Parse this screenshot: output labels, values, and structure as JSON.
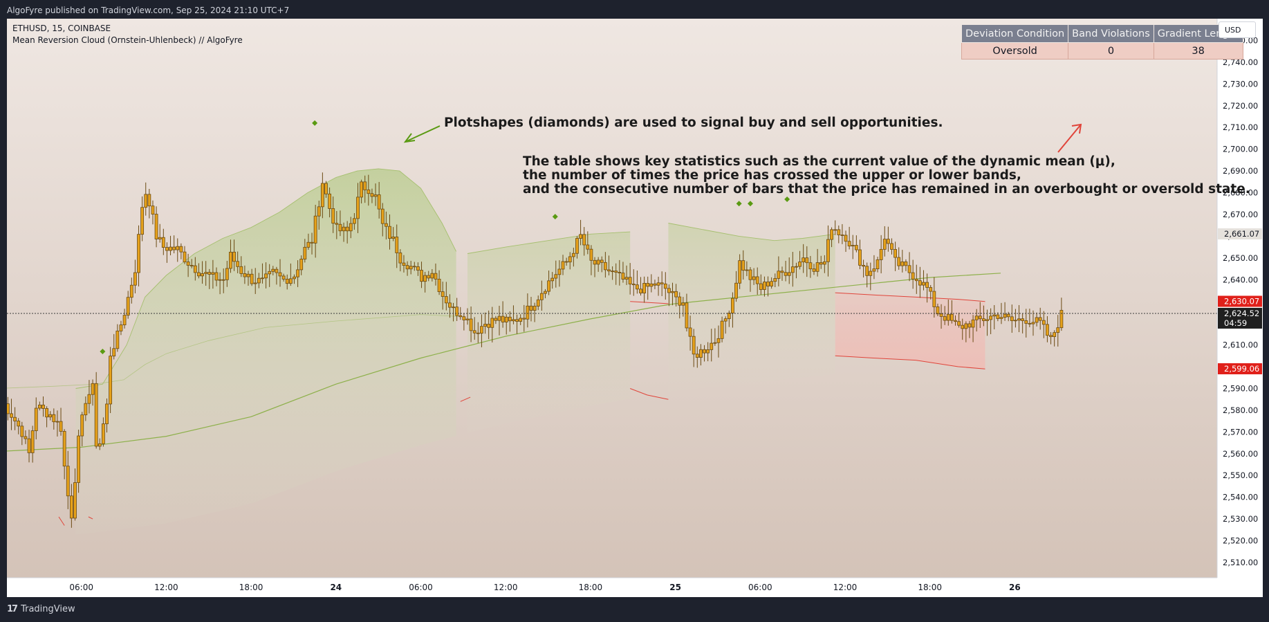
{
  "topbar": {
    "text": "AlgoFyre published on TradingView.com, Sep 25, 2024 21:10 UTC+7"
  },
  "legend": {
    "symbol": "ETHUSD, 15, COINBASE",
    "indicator": "Mean Reversion Cloud (Ornstein-Uhlenbeck) // AlgoFyre"
  },
  "stats_table": {
    "headers": [
      "Deviation Condition",
      "Band Violations",
      "Gradient Length"
    ],
    "values": [
      "Oversold",
      "0",
      "38"
    ]
  },
  "annotations": {
    "plotshapes": "Plotshapes (diamonds) are used to signal buy and sell opportunities.",
    "table_lines": [
      "The table shows key statistics such as the current value of the dynamic mean (μ),",
      "the number of times the price has crossed the upper or lower bands,",
      "and the consecutive number of bars that the price has remained in an overbought or oversold state."
    ]
  },
  "currency_button": "USD",
  "bottombar": {
    "logo": "17",
    "brand": "TradingView"
  },
  "colors": {
    "background_top": "#efe7e2",
    "background_bottom": "#d6c6bc",
    "candle_body": "#e5a11b",
    "candle_outline": "#6b4a12",
    "mean_line": "#8db04a",
    "cloud_green": "#b6c98a",
    "cloud_red": "#f0b8b0",
    "band_red": "#e0443a",
    "signal_diamond": "#5a9a12",
    "axis_bg": "#ffffff"
  },
  "price_labels": {
    "upper_band": "2,661.07",
    "upper_red": "2,630.07",
    "last_price": "2,624.52",
    "countdown": "04:59",
    "lower_red": "2,599.06"
  },
  "chart_data": {
    "type": "candlestick",
    "title": "",
    "ylim": [
      2503,
      2760
    ],
    "y_ticks": [
      2510,
      2520,
      2530,
      2540,
      2550,
      2560,
      2570,
      2580,
      2590,
      2600,
      2610,
      2620,
      2630,
      2640,
      2650,
      2660,
      2670,
      2680,
      2690,
      2700,
      2710,
      2720,
      2730,
      2740,
      2750
    ],
    "y_tick_labels": [
      "2,510.00",
      "2,520.00",
      "2,530.00",
      "2,540.00",
      "2,550.00",
      "2,560.00",
      "2,570.00",
      "2,580.00",
      "2,590.00",
      "2,600.00",
      "2,610.00",
      "2,620.00",
      "2,630.00",
      "2,640.00",
      "2,650.00",
      "2,660.00",
      "2,670.00",
      "2,680.00",
      "2,690.00",
      "2,700.00",
      "2,710.00",
      "2,720.00",
      "2,730.00",
      "2,740.00",
      "2,750.00"
    ],
    "x_range_hours": [
      0,
      60.25
    ],
    "x_ticks": [
      {
        "t": 6,
        "label": "06:00",
        "bold": false
      },
      {
        "t": 12,
        "label": "12:00",
        "bold": false
      },
      {
        "t": 18,
        "label": "18:00",
        "bold": false
      },
      {
        "t": 24,
        "label": "24",
        "bold": true
      },
      {
        "t": 30,
        "label": "06:00",
        "bold": false
      },
      {
        "t": 36,
        "label": "12:00",
        "bold": false
      },
      {
        "t": 42,
        "label": "18:00",
        "bold": false
      },
      {
        "t": 48,
        "label": "25",
        "bold": true
      },
      {
        "t": 54,
        "label": "06:00",
        "bold": false
      },
      {
        "t": 60,
        "label": "12:00",
        "bold": false
      },
      {
        "t": 66,
        "label": "18:00",
        "bold": false
      },
      {
        "t": 72,
        "label": "26",
        "bold": true
      }
    ],
    "x_anchor": {
      "first_bar_hour": 0.3,
      "bar_minutes": 15
    },
    "close_path": [
      [
        0,
        2585
      ],
      [
        3,
        2578
      ],
      [
        6,
        2570
      ],
      [
        8,
        2560
      ],
      [
        10,
        2582
      ],
      [
        14,
        2578
      ],
      [
        17,
        2572
      ],
      [
        18.5,
        2545
      ],
      [
        20,
        2532
      ],
      [
        22,
        2566
      ],
      [
        24,
        2585
      ],
      [
        26,
        2590
      ],
      [
        27,
        2565
      ],
      [
        28,
        2565
      ],
      [
        30,
        2582
      ],
      [
        31,
        2606
      ],
      [
        33,
        2614
      ],
      [
        35,
        2625
      ],
      [
        38,
        2645
      ],
      [
        40,
        2674
      ],
      [
        41,
        2680
      ],
      [
        42,
        2676
      ],
      [
        44,
        2660
      ],
      [
        46,
        2655
      ],
      [
        50,
        2654
      ],
      [
        53,
        2648
      ],
      [
        56,
        2644
      ],
      [
        60,
        2641
      ],
      [
        63,
        2640
      ],
      [
        65,
        2651
      ],
      [
        68,
        2644
      ],
      [
        71,
        2640
      ],
      [
        74,
        2639
      ],
      [
        77,
        2643
      ],
      [
        80,
        2640
      ],
      [
        83,
        2642
      ],
      [
        86,
        2654
      ],
      [
        88,
        2658
      ],
      [
        90,
        2676
      ],
      [
        91,
        2685
      ],
      [
        93,
        2673
      ],
      [
        95,
        2663
      ],
      [
        98,
        2662
      ],
      [
        100,
        2670
      ],
      [
        102,
        2683
      ],
      [
        104,
        2682
      ],
      [
        106,
        2678
      ],
      [
        108,
        2665
      ],
      [
        111,
        2658
      ],
      [
        113,
        2650
      ],
      [
        116,
        2646
      ],
      [
        119,
        2641
      ],
      [
        122,
        2644
      ],
      [
        125,
        2633
      ],
      [
        128,
        2626
      ],
      [
        131,
        2624
      ],
      [
        134,
        2616
      ],
      [
        137,
        2620
      ],
      [
        141,
        2622
      ],
      [
        144,
        2620
      ],
      [
        148,
        2624
      ],
      [
        151,
        2630
      ],
      [
        154,
        2637
      ],
      [
        157,
        2643
      ],
      [
        160,
        2648
      ],
      [
        162,
        2654
      ],
      [
        164,
        2660
      ],
      [
        167,
        2648
      ],
      [
        170,
        2646
      ],
      [
        173,
        2643
      ],
      [
        176,
        2640
      ],
      [
        179,
        2636
      ],
      [
        182,
        2636
      ],
      [
        185,
        2638
      ],
      [
        188,
        2636
      ],
      [
        191,
        2631
      ],
      [
        193,
        2630
      ],
      [
        194,
        2618
      ],
      [
        196,
        2605
      ],
      [
        199,
        2608
      ],
      [
        202,
        2612
      ],
      [
        205,
        2622
      ],
      [
        207,
        2632
      ],
      [
        209,
        2648
      ],
      [
        212,
        2641
      ],
      [
        215,
        2636
      ],
      [
        218,
        2640
      ],
      [
        221,
        2643
      ],
      [
        224,
        2646
      ],
      [
        227,
        2650
      ],
      [
        230,
        2646
      ],
      [
        233,
        2648
      ],
      [
        235,
        2665
      ],
      [
        237,
        2662
      ],
      [
        239,
        2660
      ],
      [
        242,
        2652
      ],
      [
        245,
        2643
      ],
      [
        248,
        2648
      ],
      [
        250,
        2660
      ],
      [
        253,
        2648
      ],
      [
        256,
        2645
      ],
      [
        259,
        2641
      ],
      [
        262,
        2636
      ],
      [
        265,
        2625
      ],
      [
        268,
        2622
      ],
      [
        271,
        2618
      ],
      [
        274,
        2620
      ],
      [
        278,
        2622
      ],
      [
        282,
        2624
      ],
      [
        286,
        2621
      ],
      [
        290,
        2622
      ],
      [
        294,
        2620
      ],
      [
        297,
        2612
      ],
      [
        300,
        2624
      ]
    ],
    "series": [
      {
        "name": "",
        "kind": "mean",
        "points": [
          [
            0,
            2561
          ],
          [
            6,
            2563
          ],
          [
            12,
            2568
          ],
          [
            18,
            2577
          ],
          [
            24,
            2592
          ],
          [
            30,
            2604
          ],
          [
            36,
            2614
          ],
          [
            42,
            2622
          ],
          [
            47,
            2628
          ],
          [
            48,
            2629
          ],
          [
            54,
            2633
          ],
          [
            60,
            2637
          ],
          [
            66,
            2641
          ],
          [
            71,
            2643
          ]
        ]
      },
      {
        "name": "",
        "kind": "upper",
        "points": [
          [
            5.6,
            2590
          ],
          [
            7.5,
            2592
          ],
          [
            9.2,
            2610
          ],
          [
            10.5,
            2632
          ],
          [
            12,
            2642
          ],
          [
            14,
            2652
          ],
          [
            16,
            2659
          ],
          [
            18,
            2664
          ],
          [
            20,
            2671
          ],
          [
            22,
            2680
          ],
          [
            24,
            2687
          ],
          [
            25.5,
            2690
          ],
          [
            27,
            2691
          ],
          [
            28.5,
            2690
          ],
          [
            30,
            2682
          ],
          [
            31.5,
            2666
          ],
          [
            32.5,
            2653
          ]
        ]
      },
      {
        "name": "",
        "kind": "upper",
        "points": [
          [
            33.3,
            2652
          ],
          [
            36,
            2655
          ],
          [
            39,
            2658
          ],
          [
            42,
            2661
          ],
          [
            44.8,
            2662
          ]
        ]
      },
      {
        "name": "",
        "kind": "upper",
        "points": [
          [
            47.5,
            2666
          ],
          [
            50,
            2663
          ],
          [
            52.5,
            2660
          ],
          [
            55,
            2658
          ],
          [
            57,
            2659
          ],
          [
            59.3,
            2661
          ]
        ]
      },
      {
        "name": "",
        "kind": "red_upper",
        "points": [
          [
            44.8,
            2630
          ],
          [
            47.5,
            2629
          ]
        ]
      },
      {
        "name": "",
        "kind": "red_upper",
        "points": [
          [
            59.3,
            2634
          ],
          [
            62,
            2633
          ],
          [
            65,
            2632
          ],
          [
            68,
            2631
          ],
          [
            69.9,
            2630
          ]
        ]
      },
      {
        "name": "",
        "kind": "red_lower",
        "points": [
          [
            59.3,
            2605
          ],
          [
            62,
            2604
          ],
          [
            65,
            2603
          ],
          [
            68,
            2600
          ],
          [
            69.9,
            2599
          ]
        ]
      },
      {
        "name": "",
        "kind": "red_lower",
        "points": [
          [
            44.8,
            2590
          ],
          [
            46,
            2587
          ],
          [
            47.5,
            2585
          ]
        ]
      },
      {
        "name": "",
        "kind": "red_lower",
        "points": [
          [
            32.8,
            2584
          ],
          [
            33.5,
            2586
          ]
        ]
      },
      {
        "name": "",
        "kind": "red_lower",
        "points": [
          [
            4.4,
            2531
          ],
          [
            4.8,
            2527
          ]
        ]
      },
      {
        "name": "",
        "kind": "red_lower",
        "points": [
          [
            6.5,
            2531
          ],
          [
            6.8,
            2530
          ]
        ]
      },
      {
        "name": "",
        "kind": "lower",
        "points": [
          [
            0,
            2590
          ],
          [
            4,
            2591
          ],
          [
            7,
            2592
          ],
          [
            9,
            2594
          ],
          [
            10.5,
            2601
          ],
          [
            12,
            2606
          ],
          [
            15,
            2612
          ],
          [
            19,
            2618
          ],
          [
            24,
            2621
          ],
          [
            30,
            2624
          ],
          [
            33,
            2623
          ]
        ]
      }
    ],
    "signals": [
      [
        7.5,
        2607
      ],
      [
        22.5,
        2712
      ],
      [
        39.5,
        2669
      ],
      [
        52.5,
        2675
      ],
      [
        53.3,
        2675
      ],
      [
        55.9,
        2677
      ]
    ],
    "cloud_ranges": [
      [
        0,
        33.1
      ],
      [
        33.2,
        45
      ],
      [
        47.5,
        59.3
      ],
      [
        59.3,
        70
      ]
    ],
    "current_price": 2624.52
  }
}
